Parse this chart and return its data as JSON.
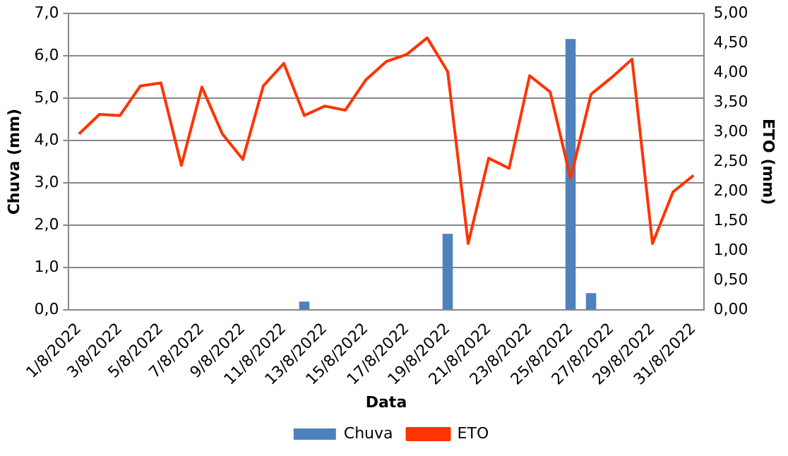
{
  "chart_data": {
    "type": "bar",
    "categories": [
      "1/8/2022",
      null,
      "3/8/2022",
      null,
      "5/8/2022",
      null,
      "7/8/2022",
      null,
      "9/8/2022",
      null,
      "11/8/2022",
      null,
      "13/8/2022",
      null,
      "15/8/2022",
      null,
      "17/8/2022",
      null,
      "19/8/2022",
      null,
      "21/8/2022",
      null,
      "23/8/2022",
      null,
      "25/8/2022",
      null,
      "27/8/2022",
      null,
      "29/8/2022",
      null,
      "31/8/2022"
    ],
    "series": [
      {
        "name": "Chuva",
        "color": "#4f81bd",
        "values": [
          0,
          0,
          0,
          0,
          0,
          0,
          0,
          0,
          0,
          0,
          0,
          0.2,
          0,
          0,
          0,
          0,
          0,
          0,
          1.8,
          0,
          0,
          0,
          0,
          0,
          6.4,
          0.4,
          0,
          0,
          0,
          0,
          0
        ]
      },
      {
        "name": "ETO",
        "type": "line",
        "axis": "y2",
        "color": "#ff3300",
        "values": [
          2.97,
          3.3,
          3.28,
          3.78,
          3.83,
          2.44,
          3.76,
          2.97,
          2.54,
          3.78,
          4.16,
          3.28,
          3.44,
          3.37,
          3.88,
          4.19,
          4.31,
          4.59,
          4.02,
          1.12,
          2.56,
          2.39,
          3.95,
          3.68,
          2.22,
          3.64,
          3.92,
          4.23,
          1.12,
          1.99,
          2.27
        ]
      }
    ],
    "xlabel": "Data",
    "ylabel": "Chuva (mm)",
    "y2label": "ETO (mm)",
    "ylim": [
      0,
      7
    ],
    "yticks": [
      {
        "value": 0,
        "label": "0,0"
      },
      {
        "value": 1,
        "label": "1,0"
      },
      {
        "value": 2,
        "label": "2,0"
      },
      {
        "value": 3,
        "label": "3,0"
      },
      {
        "value": 4,
        "label": "4,0"
      },
      {
        "value": 5,
        "label": "5,0"
      },
      {
        "value": 6,
        "label": "6,0"
      },
      {
        "value": 7,
        "label": "7,0"
      }
    ],
    "y2lim": [
      0,
      5
    ],
    "y2ticks": [
      {
        "value": 0,
        "label": "0,00"
      },
      {
        "value": 0.5,
        "label": "0,50"
      },
      {
        "value": 1,
        "label": "1,00"
      },
      {
        "value": 1.5,
        "label": "1,50"
      },
      {
        "value": 2,
        "label": "2,00"
      },
      {
        "value": 2.5,
        "label": "2,50"
      },
      {
        "value": 3,
        "label": "3,00"
      },
      {
        "value": 3.5,
        "label": "3,50"
      },
      {
        "value": 4,
        "label": "4,00"
      },
      {
        "value": 4.5,
        "label": "4,50"
      },
      {
        "value": 5,
        "label": "5,00"
      }
    ],
    "grid": "y",
    "legend": "bottom",
    "marker": "none"
  }
}
